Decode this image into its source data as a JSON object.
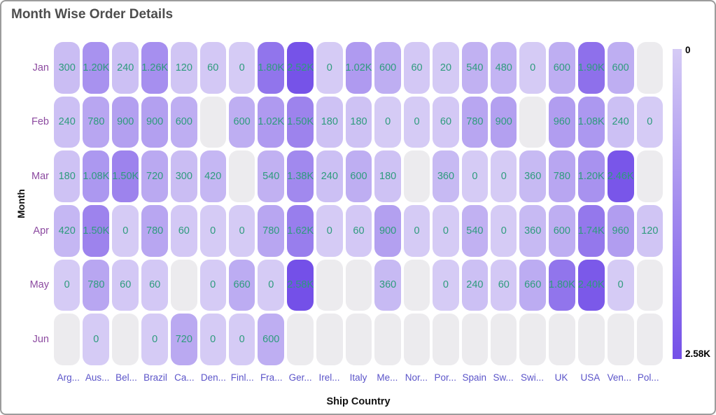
{
  "title": "Month Wise Order Details",
  "chart_data": {
    "type": "heatmap",
    "title": "Month Wise Order Details",
    "xlabel": "Ship Country",
    "ylabel": "Month",
    "x_categories": [
      "Arg...",
      "Aus...",
      "Bel...",
      "Brazil",
      "Ca...",
      "Den...",
      "Finl...",
      "Fra...",
      "Ger...",
      "Irel...",
      "Italy",
      "Me...",
      "Nor...",
      "Por...",
      "Spain",
      "Sw...",
      "Swi...",
      "UK",
      "USA",
      "Ven...",
      "Pol..."
    ],
    "y_categories": [
      "Jan",
      "Feb",
      "Mar",
      "Apr",
      "May",
      "Jun"
    ],
    "values": [
      [
        300,
        1200,
        240,
        1260,
        120,
        60,
        0,
        1800,
        2520,
        0,
        1020,
        600,
        60,
        20,
        540,
        480,
        0,
        600,
        1900,
        600,
        null
      ],
      [
        240,
        780,
        900,
        900,
        600,
        null,
        600,
        1020,
        1500,
        180,
        180,
        0,
        0,
        60,
        780,
        900,
        null,
        960,
        1080,
        240,
        0
      ],
      [
        180,
        1080,
        1500,
        720,
        300,
        420,
        null,
        540,
        1380,
        240,
        600,
        180,
        null,
        360,
        0,
        0,
        360,
        780,
        1200,
        2460,
        null
      ],
      [
        420,
        1500,
        0,
        780,
        60,
        0,
        0,
        780,
        1620,
        0,
        60,
        900,
        0,
        0,
        540,
        0,
        360,
        600,
        1740,
        960,
        120
      ],
      [
        0,
        780,
        60,
        60,
        null,
        0,
        660,
        0,
        2580,
        null,
        null,
        360,
        null,
        0,
        240,
        60,
        660,
        1800,
        2400,
        0,
        null
      ],
      [
        null,
        0,
        null,
        0,
        720,
        0,
        0,
        600,
        null,
        null,
        null,
        null,
        null,
        null,
        null,
        null,
        null,
        null,
        null,
        null,
        null
      ]
    ],
    "labels": [
      [
        "300",
        "1.20K",
        "240",
        "1.26K",
        "120",
        "60",
        "0",
        "1.80K",
        "2.52K",
        "0",
        "1.02K",
        "600",
        "60",
        "20",
        "540",
        "480",
        "0",
        "600",
        "1.90K",
        "600",
        ""
      ],
      [
        "240",
        "780",
        "900",
        "900",
        "600",
        "",
        "600",
        "1.02K",
        "1.50K",
        "180",
        "180",
        "0",
        "0",
        "60",
        "780",
        "900",
        "",
        "960",
        "1.08K",
        "240",
        "0"
      ],
      [
        "180",
        "1.08K",
        "1.50K",
        "720",
        "300",
        "420",
        "",
        "540",
        "1.38K",
        "240",
        "600",
        "180",
        "",
        "360",
        "0",
        "0",
        "360",
        "780",
        "1.20K",
        "2.46K",
        ""
      ],
      [
        "420",
        "1.50K",
        "0",
        "780",
        "60",
        "0",
        "0",
        "780",
        "1.62K",
        "0",
        "60",
        "900",
        "0",
        "0",
        "540",
        "0",
        "360",
        "600",
        "1.74K",
        "960",
        "120"
      ],
      [
        "0",
        "780",
        "60",
        "60",
        "",
        "0",
        "660",
        "0",
        "2.58K",
        "",
        "",
        "360",
        "",
        "0",
        "240",
        "60",
        "660",
        "1.80K",
        "2.40K",
        "0",
        ""
      ],
      [
        "",
        "0",
        "",
        "0",
        "720",
        "0",
        "0",
        "600",
        "",
        "",
        "",
        "",
        "",
        "",
        "",
        "",
        "",
        "",
        "",
        "",
        ""
      ]
    ],
    "color_min_value": 0,
    "color_max_value": 2580,
    "legend": {
      "position": "right",
      "top_label": "0",
      "bottom_label": "2.58K"
    },
    "colors": {
      "cell_min": "#D5CBF5",
      "cell_max": "#7450E8",
      "cell_empty": "#ECEBEE",
      "value_text": "#2E9B7D",
      "month_tick": "#8C4AA0",
      "country_tick": "#5B54C9",
      "title_text": "#4D4D4D",
      "border": "#9C9C9C"
    }
  }
}
